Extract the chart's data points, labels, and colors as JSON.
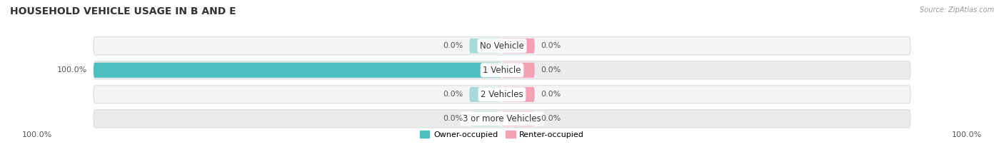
{
  "title": "HOUSEHOLD VEHICLE USAGE IN B AND E",
  "source": "Source: ZipAtlas.com",
  "categories": [
    "No Vehicle",
    "1 Vehicle",
    "2 Vehicles",
    "3 or more Vehicles"
  ],
  "owner_values": [
    0.0,
    100.0,
    0.0,
    0.0
  ],
  "renter_values": [
    0.0,
    0.0,
    0.0,
    0.0
  ],
  "owner_color": "#4BBFBF",
  "owner_color_light": "#A8DADC",
  "renter_color": "#F4A0B5",
  "renter_color_light": "#F4A0B5",
  "row_bg_odd": "#F5F5F5",
  "row_bg_even": "#EBEBEB",
  "title_fontsize": 10,
  "label_fontsize": 8,
  "cat_fontsize": 8.5,
  "axis_max": 100.0,
  "legend_left_label": "100.0%",
  "legend_right_label": "100.0%",
  "figsize": [
    14.06,
    2.34
  ],
  "dpi": 100
}
